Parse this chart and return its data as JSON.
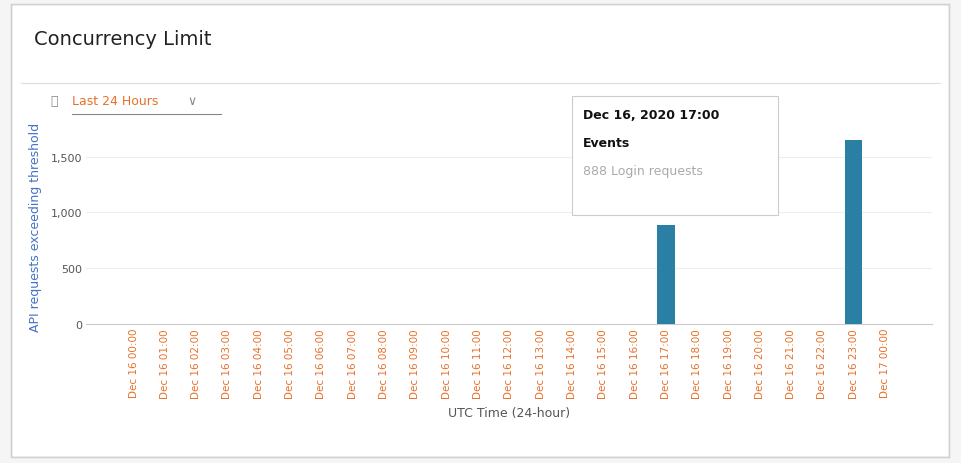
{
  "title": "Concurrency Limit",
  "subtitle": "Last 24 Hours",
  "xlabel": "UTC Time (24-hour)",
  "ylabel": "API requests exceeding threshold",
  "bar_color": "#2a7fa5",
  "background_color": "#f5f5f5",
  "panel_background": "#ffffff",
  "x_labels": [
    "Dec 16 00:00",
    "Dec 16 01:00",
    "Dec 16 02:00",
    "Dec 16 03:00",
    "Dec 16 04:00",
    "Dec 16 05:00",
    "Dec 16 06:00",
    "Dec 16 07:00",
    "Dec 16 08:00",
    "Dec 16 09:00",
    "Dec 16 10:00",
    "Dec 16 11:00",
    "Dec 16 12:00",
    "Dec 16 13:00",
    "Dec 16 14:00",
    "Dec 16 15:00",
    "Dec 16 16:00",
    "Dec 16 17:00",
    "Dec 16 18:00",
    "Dec 16 19:00",
    "Dec 16 20:00",
    "Dec 16 21:00",
    "Dec 16 22:00",
    "Dec 16 23:00",
    "Dec 17 00:00"
  ],
  "values": [
    0,
    0,
    0,
    0,
    0,
    0,
    0,
    0,
    0,
    0,
    0,
    0,
    0,
    0,
    0,
    0,
    0,
    888,
    0,
    0,
    0,
    0,
    0,
    1650,
    0
  ],
  "ylim": [
    0,
    1750
  ],
  "yticks": [
    0,
    500,
    1000,
    1500
  ],
  "ytick_labels": [
    "0",
    "500",
    "1,000",
    "1,500"
  ],
  "tooltip_date": "Dec 16, 2020 17:00",
  "tooltip_section": "Events",
  "tooltip_detail": "888 Login requests",
  "title_fontsize": 14,
  "axis_label_fontsize": 9,
  "tick_fontsize": 8,
  "bar_width": 0.55,
  "ylabel_color": "#4472c4",
  "tick_color": "#e8702a",
  "border_color": "#d0d0d0",
  "grid_color": "#eeeeee"
}
